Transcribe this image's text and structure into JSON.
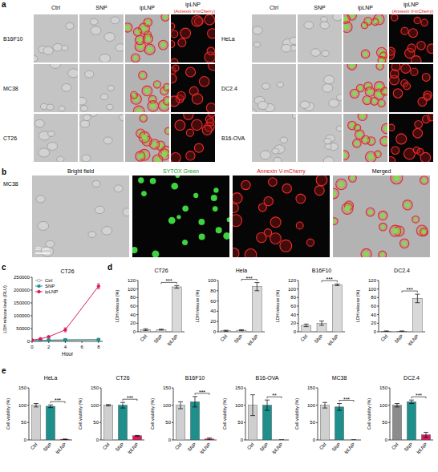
{
  "panel_a": {
    "letter": "a",
    "columns": [
      "Ctrl",
      "SNP",
      "ipLNP",
      "ipLNP"
    ],
    "stain": "(Annexin V-mCherry)",
    "row_groups": [
      [
        "B16F10",
        "MC38",
        "CT26"
      ],
      [
        "HeLa",
        "DC2.4",
        "B16-OVA"
      ]
    ]
  },
  "panel_b": {
    "letter": "b",
    "row": "MC38",
    "columns": [
      "Bright field",
      "SYTOX Green",
      "Annexin V-mCherry",
      "Merged"
    ],
    "scale_bar": "20 μm"
  },
  "panel_letters": [
    "c",
    "d",
    "e"
  ],
  "chart_data": [
    {
      "type": "line",
      "title": "CT26",
      "x_label": "Hour",
      "y_label": "LDH release levle (RLU)",
      "x": [
        0,
        1,
        2,
        4,
        8
      ],
      "xlim": [
        0,
        8.5
      ],
      "xticks": [
        0,
        2,
        4,
        6,
        8
      ],
      "ylim": [
        0,
        250000
      ],
      "yticks": [
        0,
        50000,
        100000,
        150000,
        200000,
        250000
      ],
      "legend": "upper left",
      "series": [
        {
          "name": "Ctrl",
          "color": "#9e9e9e",
          "marker": "circle",
          "values": [
            3000,
            4000,
            5000,
            6000,
            7000
          ],
          "errors": [
            500,
            500,
            600,
            700,
            800
          ]
        },
        {
          "name": "SNP",
          "color": "#1f8f8c",
          "marker": "square",
          "values": [
            2500,
            3500,
            4500,
            5500,
            6500
          ],
          "errors": [
            400,
            500,
            500,
            600,
            700
          ]
        },
        {
          "name": "ipLNP",
          "color": "#d81b60",
          "marker": "circle",
          "values": [
            5000,
            10000,
            18000,
            45000,
            215000
          ],
          "errors": [
            1000,
            1500,
            2500,
            8000,
            10000
          ]
        }
      ]
    },
    {
      "type": "bar",
      "title": "CT26",
      "y_label": "LDH release (%)",
      "categories": [
        "Ctrl",
        "SNP",
        "ipLNP"
      ],
      "values": [
        5,
        5,
        105
      ],
      "errors": [
        2,
        1,
        3
      ],
      "colors": [
        "#d9d9d9",
        "#d9d9d9",
        "#d9d9d9"
      ],
      "ylim": [
        0,
        120
      ],
      "yticks": [
        0,
        20,
        40,
        60,
        80,
        100,
        120
      ],
      "annotation": "***"
    },
    {
      "type": "bar",
      "title": "Hela",
      "y_label": "LDH release (%)",
      "categories": [
        "Ctrl",
        "SNP",
        "ipLNP"
      ],
      "values": [
        2,
        3,
        88
      ],
      "errors": [
        1,
        1,
        8
      ],
      "colors": [
        "#d9d9d9",
        "#d9d9d9",
        "#d9d9d9"
      ],
      "ylim": [
        0,
        100
      ],
      "yticks": [
        0,
        20,
        40,
        60,
        80,
        100
      ],
      "annotation": "***"
    },
    {
      "type": "bar",
      "title": "B16F10",
      "y_label": "LDH release (%)",
      "categories": [
        "Ctrl",
        "SNP",
        "ipLNP"
      ],
      "values": [
        15,
        20,
        110
      ],
      "errors": [
        3,
        5,
        2
      ],
      "colors": [
        "#d9d9d9",
        "#d9d9d9",
        "#d9d9d9"
      ],
      "ylim": [
        0,
        120
      ],
      "yticks": [
        0,
        20,
        40,
        60,
        80,
        100,
        120
      ],
      "annotation": "***"
    },
    {
      "type": "bar",
      "title": "DC2.4",
      "y_label": "LDH release (%)",
      "categories": [
        "Ctrl",
        "SNP",
        "ipLNP"
      ],
      "values": [
        1,
        1,
        78
      ],
      "errors": [
        1,
        1,
        10
      ],
      "colors": [
        "#d9d9d9",
        "#d9d9d9",
        "#d9d9d9"
      ],
      "ylim": [
        0,
        120
      ],
      "yticks": [
        0,
        20,
        40,
        60,
        80,
        100,
        120
      ],
      "annotation": "***"
    },
    {
      "type": "bar",
      "title": "HeLa",
      "y_label": "Cell viability (%)",
      "categories": [
        "Ctrl",
        "SNP",
        "ipLNP"
      ],
      "values": [
        100,
        97,
        2
      ],
      "errors": [
        5,
        4,
        0.5
      ],
      "colors": [
        "#cfcfcf",
        "#1f8f8c",
        "#d81b60"
      ],
      "ylim": [
        0,
        150
      ],
      "yticks": [
        0,
        50,
        100,
        150
      ],
      "annotation": "***"
    },
    {
      "type": "bar",
      "title": "CT26",
      "y_label": "Cell viability (%)",
      "categories": [
        "Ctrl",
        "SNP",
        "ipLNP"
      ],
      "values": [
        100,
        100,
        12
      ],
      "errors": [
        2,
        8,
        1
      ],
      "colors": [
        "#cfcfcf",
        "#1f8f8c",
        "#d81b60"
      ],
      "ylim": [
        0,
        150
      ],
      "yticks": [
        0,
        50,
        100,
        150
      ],
      "annotation": "***"
    },
    {
      "type": "bar",
      "title": "B16F10",
      "y_label": "Cell viability (%)",
      "categories": [
        "Ctrl",
        "SNP",
        "ipLNP"
      ],
      "values": [
        100,
        110,
        3
      ],
      "errors": [
        10,
        15,
        3
      ],
      "colors": [
        "#cfcfcf",
        "#1f8f8c",
        "#d81b60"
      ],
      "ylim": [
        0,
        150
      ],
      "yticks": [
        0,
        50,
        100,
        150
      ],
      "annotation": "***"
    },
    {
      "type": "bar",
      "title": "B16-OVA",
      "y_label": "Cell viability (%)",
      "categories": [
        "Ctrl",
        "SNP",
        "ipLNP"
      ],
      "values": [
        100,
        100,
        0
      ],
      "errors": [
        30,
        15,
        0
      ],
      "colors": [
        "#cfcfcf",
        "#1f8f8c",
        "#d81b60"
      ],
      "ylim": [
        0,
        150
      ],
      "yticks": [
        0,
        50,
        100,
        150
      ],
      "annotation": "**"
    },
    {
      "type": "bar",
      "title": "MC38",
      "y_label": "Cell viability (%)",
      "categories": [
        "Ctrl",
        "SNP",
        "ipLNP"
      ],
      "values": [
        100,
        95,
        0
      ],
      "errors": [
        8,
        10,
        0
      ],
      "colors": [
        "#cfcfcf",
        "#1f8f8c",
        "#d81b60"
      ],
      "ylim": [
        0,
        150
      ],
      "yticks": [
        0,
        50,
        100,
        150
      ],
      "annotation": "***"
    },
    {
      "type": "bar",
      "title": "DC2.4",
      "y_label": "Cell viability (%)",
      "categories": [
        "Ctrl",
        "SNP",
        "ipLNP"
      ],
      "values": [
        100,
        110,
        15
      ],
      "errors": [
        5,
        5,
        7
      ],
      "colors": [
        "#8c8c8c",
        "#1f8f8c",
        "#d81b60"
      ],
      "ylim": [
        0,
        150
      ],
      "yticks": [
        0,
        50,
        100,
        150
      ],
      "annotation": "***"
    }
  ]
}
